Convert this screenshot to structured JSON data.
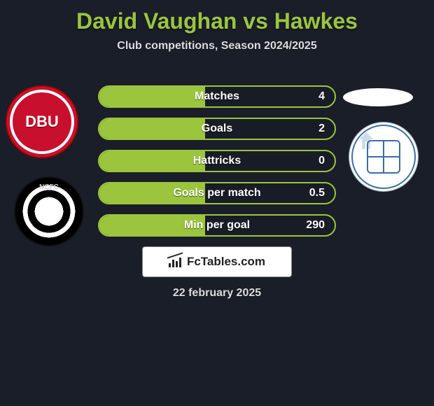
{
  "header": {
    "title": "David Vaughan vs Hawkes",
    "subtitle": "Club competitions, Season 2024/2025"
  },
  "colors": {
    "accent": "#9bc53d",
    "background": "#1a1e29",
    "text_light": "#ffffff"
  },
  "stats": [
    {
      "label": "Matches",
      "value": "4",
      "fill_pct": 45
    },
    {
      "label": "Goals",
      "value": "2",
      "fill_pct": 45
    },
    {
      "label": "Hattricks",
      "value": "0",
      "fill_pct": 45
    },
    {
      "label": "Goals per match",
      "value": "0.5",
      "fill_pct": 45
    },
    {
      "label": "Min per goal",
      "value": "290",
      "fill_pct": 45
    }
  ],
  "brand": {
    "label": "FcTables.com"
  },
  "date": "22 february 2025",
  "badges": {
    "left_top": "dbu-badge",
    "left_bottom": "notts-county-badge",
    "right_oval": "blank-oval-badge",
    "right_circle": "tranmere-rovers-badge"
  }
}
